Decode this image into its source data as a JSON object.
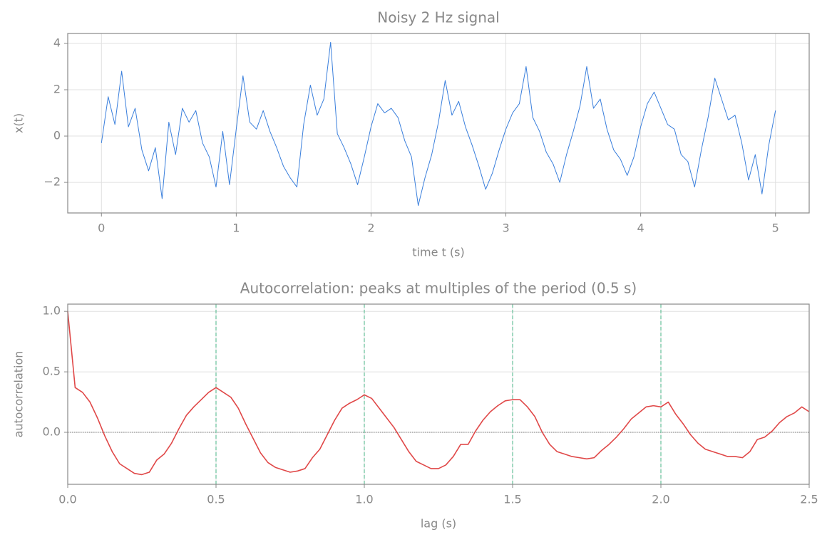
{
  "chart_data": [
    {
      "type": "line",
      "title": "Noisy 2 Hz signal",
      "xlabel": "time t (s)",
      "ylabel": "x(t)",
      "color": "#3a7fdc",
      "grid": true,
      "x": [
        0,
        0.05,
        0.1,
        0.15,
        0.2,
        0.25,
        0.3,
        0.35,
        0.4,
        0.45,
        0.5,
        0.55,
        0.6,
        0.65,
        0.7,
        0.75,
        0.8,
        0.85,
        0.9,
        0.95,
        1,
        1.05,
        1.1,
        1.15,
        1.2,
        1.25,
        1.3,
        1.35,
        1.4,
        1.45,
        1.5,
        1.55,
        1.6,
        1.65,
        1.7,
        1.75,
        1.8,
        1.85,
        1.9,
        1.95,
        2,
        2.05,
        2.1,
        2.15,
        2.2,
        2.25,
        2.3,
        2.35,
        2.4,
        2.45,
        2.5,
        2.55,
        2.6,
        2.65,
        2.7,
        2.75,
        2.8,
        2.85,
        2.9,
        2.95,
        3,
        3.05,
        3.1,
        3.15,
        3.2,
        3.25,
        3.3,
        3.35,
        3.4,
        3.45,
        3.5,
        3.55,
        3.6,
        3.65,
        3.7,
        3.75,
        3.8,
        3.85,
        3.9,
        3.95,
        4,
        4.05,
        4.1,
        4.15,
        4.2,
        4.25,
        4.3,
        4.35,
        4.4,
        4.45,
        4.5,
        4.55,
        4.6,
        4.65,
        4.7,
        4.75,
        4.8,
        4.85,
        4.9,
        4.95,
        5
      ],
      "values": [
        -0.3,
        1.7,
        0.5,
        2.8,
        0.4,
        1.2,
        -0.6,
        -1.5,
        -0.5,
        -2.7,
        0.6,
        -0.8,
        1.2,
        0.6,
        1.1,
        -0.3,
        -0.9,
        -2.2,
        0.2,
        -2.1,
        0.3,
        2.6,
        0.6,
        0.3,
        1.1,
        0.2,
        -0.5,
        -1.3,
        -1.8,
        -2.2,
        0.5,
        2.2,
        0.9,
        1.6,
        4.05,
        0.1,
        -0.5,
        -1.2,
        -2.1,
        -0.9,
        0.4,
        1.4,
        1.0,
        1.2,
        0.8,
        -0.2,
        -0.9,
        -3.0,
        -1.8,
        -0.8,
        0.6,
        2.4,
        0.9,
        1.5,
        0.4,
        -0.4,
        -1.3,
        -2.3,
        -1.6,
        -0.6,
        0.3,
        1.0,
        1.4,
        3.0,
        0.8,
        0.2,
        -0.7,
        -1.2,
        -2.0,
        -0.8,
        0.2,
        1.3,
        3.0,
        1.2,
        1.6,
        0.3,
        -0.6,
        -1.0,
        -1.7,
        -0.9,
        0.4,
        1.4,
        1.9,
        1.2,
        0.5,
        0.3,
        -0.8,
        -1.1,
        -2.2,
        -0.6,
        0.8,
        2.5,
        1.6,
        0.7,
        0.9,
        -0.3,
        -1.9,
        -0.8,
        -2.5,
        -0.4,
        1.1
      ],
      "xlim": [
        -0.25,
        5.25
      ],
      "ylim": [
        -3.32,
        4.43
      ],
      "xticks": [
        0,
        1,
        2,
        3,
        4,
        5
      ],
      "yticks": [
        {
          "value": -2,
          "label": "−2"
        },
        0,
        2,
        4
      ]
    },
    {
      "type": "line",
      "title": "Autocorrelation: peaks at multiples of the period (0.5 s)",
      "xlabel": "lag (s)",
      "ylabel": "autocorrelation",
      "color": "#e04848",
      "grid": true,
      "x": [
        0,
        0.025,
        0.05,
        0.075,
        0.1,
        0.125,
        0.15,
        0.175,
        0.2,
        0.225,
        0.25,
        0.275,
        0.3,
        0.325,
        0.35,
        0.375,
        0.4,
        0.425,
        0.45,
        0.475,
        0.5,
        0.525,
        0.55,
        0.575,
        0.6,
        0.625,
        0.65,
        0.675,
        0.7,
        0.725,
        0.75,
        0.775,
        0.8,
        0.825,
        0.85,
        0.875,
        0.9,
        0.925,
        0.95,
        0.975,
        1,
        1.025,
        1.05,
        1.075,
        1.1,
        1.125,
        1.15,
        1.175,
        1.2,
        1.225,
        1.25,
        1.275,
        1.3,
        1.325,
        1.35,
        1.375,
        1.4,
        1.425,
        1.45,
        1.475,
        1.5,
        1.525,
        1.55,
        1.575,
        1.6,
        1.625,
        1.65,
        1.675,
        1.7,
        1.725,
        1.75,
        1.775,
        1.8,
        1.825,
        1.85,
        1.875,
        1.9,
        1.925,
        1.95,
        1.975,
        2,
        2.025,
        2.05,
        2.075,
        2.1,
        2.125,
        2.15,
        2.175,
        2.2,
        2.225,
        2.25,
        2.275,
        2.3,
        2.325,
        2.35,
        2.375,
        2.4,
        2.425,
        2.45,
        2.475,
        2.5
      ],
      "values": [
        1.0,
        0.37,
        0.33,
        0.25,
        0.12,
        -0.03,
        -0.16,
        -0.26,
        -0.3,
        -0.34,
        -0.35,
        -0.33,
        -0.23,
        -0.18,
        -0.09,
        0.03,
        0.14,
        0.21,
        0.27,
        0.33,
        0.37,
        0.33,
        0.29,
        0.2,
        0.07,
        -0.05,
        -0.17,
        -0.25,
        -0.29,
        -0.31,
        -0.33,
        -0.32,
        -0.3,
        -0.21,
        -0.14,
        -0.02,
        0.1,
        0.2,
        0.24,
        0.27,
        0.31,
        0.28,
        0.2,
        0.12,
        0.04,
        -0.06,
        -0.16,
        -0.24,
        -0.27,
        -0.3,
        -0.3,
        -0.27,
        -0.2,
        -0.1,
        -0.1,
        0.01,
        0.1,
        0.17,
        0.22,
        0.26,
        0.27,
        0.27,
        0.21,
        0.13,
        0,
        -0.1,
        -0.16,
        -0.18,
        -0.2,
        -0.21,
        -0.22,
        -0.21,
        -0.15,
        -0.1,
        -0.04,
        0.03,
        0.11,
        0.16,
        0.21,
        0.22,
        0.21,
        0.25,
        0.15,
        0.07,
        -0.02,
        -0.09,
        -0.14,
        -0.16,
        -0.18,
        -0.2,
        -0.2,
        -0.21,
        -0.16,
        -0.06,
        -0.04,
        0.01,
        0.08,
        0.13,
        0.16,
        0.21,
        0.17
      ],
      "xlim": [
        0,
        2.5
      ],
      "ylim": [
        -0.43,
        1.06
      ],
      "xticks": [
        {
          "value": 0,
          "label": "0.0"
        },
        {
          "value": 0.5,
          "label": "0.5"
        },
        {
          "value": 1,
          "label": "1.0"
        },
        {
          "value": 1.5,
          "label": "1.5"
        },
        {
          "value": 2,
          "label": "2.0"
        },
        {
          "value": 2.5,
          "label": "2.5"
        }
      ],
      "yticks": [
        {
          "value": 0,
          "label": "0.0"
        },
        {
          "value": 0.5,
          "label": "0.5"
        },
        {
          "value": 1,
          "label": "1.0"
        }
      ],
      "vlines": [
        0.5,
        1,
        1.5,
        2
      ],
      "vline_color": "#66c099",
      "hline": 0,
      "hline_color": "#777"
    }
  ]
}
